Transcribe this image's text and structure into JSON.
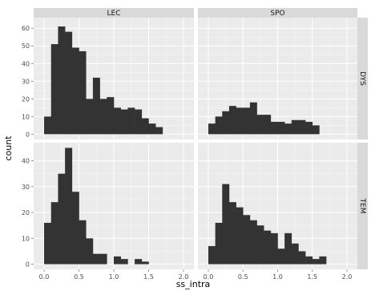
{
  "chart_data": {
    "type": "bar",
    "subtype": "faceted-histogram",
    "xlabel": "ss_intra",
    "ylabel": "count",
    "xlim": [
      -0.15,
      2.15
    ],
    "x_ticks": [
      0.0,
      0.5,
      1.0,
      1.5,
      2.0
    ],
    "x_tick_labels": [
      "0.0",
      "0.5",
      "1.0",
      "1.5",
      "2.0"
    ],
    "bin_width": 0.1,
    "bin_starts": [
      0.0,
      0.1,
      0.2,
      0.3,
      0.4,
      0.5,
      0.6,
      0.7,
      0.8,
      0.9,
      1.0,
      1.1,
      1.2,
      1.3,
      1.4,
      1.5,
      1.6,
      1.7,
      1.8,
      1.9
    ],
    "column_facets": [
      "LEC",
      "SPO"
    ],
    "row_facets": [
      "DYS",
      "TEM"
    ],
    "grid": true,
    "colors": {
      "bar": "#333333",
      "panel": "#ebebeb",
      "gridline": "#ffffff",
      "strip": "#d9d9d9"
    },
    "panels": [
      {
        "col": "LEC",
        "row": "DYS",
        "ylim": [
          -3,
          66
        ],
        "y_ticks": [
          0,
          10,
          20,
          30,
          40,
          50,
          60
        ],
        "y_tick_labels": [
          "0",
          "10",
          "20",
          "30",
          "40",
          "50",
          "60"
        ],
        "counts": [
          10,
          51,
          61,
          58,
          49,
          47,
          20,
          32,
          20,
          21,
          15,
          14,
          15,
          14,
          9,
          6,
          4,
          0,
          0,
          0
        ]
      },
      {
        "col": "SPO",
        "row": "DYS",
        "ylim": [
          -3,
          66
        ],
        "y_ticks": [
          0,
          10,
          20,
          30,
          40,
          50,
          60
        ],
        "y_tick_labels": [
          "0",
          "10",
          "20",
          "30",
          "40",
          "50",
          "60"
        ],
        "counts": [
          6,
          10,
          13,
          16,
          15,
          15,
          18,
          11,
          11,
          7,
          7,
          6,
          8,
          8,
          7,
          5,
          0,
          0,
          0,
          0
        ]
      },
      {
        "col": "LEC",
        "row": "TEM",
        "ylim": [
          -2,
          47
        ],
        "y_ticks": [
          0,
          10,
          20,
          30,
          40
        ],
        "y_tick_labels": [
          "0",
          "10",
          "20",
          "30",
          "40"
        ],
        "counts": [
          16,
          24,
          35,
          45,
          28,
          17,
          10,
          4,
          4,
          0,
          3,
          2,
          0,
          2,
          1,
          0,
          0,
          0,
          0,
          0
        ]
      },
      {
        "col": "SPO",
        "row": "TEM",
        "ylim": [
          -2,
          47
        ],
        "y_ticks": [
          0,
          10,
          20,
          30,
          40
        ],
        "y_tick_labels": [
          "0",
          "10",
          "20",
          "30",
          "40"
        ],
        "counts": [
          7,
          16,
          31,
          24,
          22,
          19,
          17,
          15,
          13,
          12,
          6,
          12,
          8,
          5,
          3,
          2,
          3,
          0,
          0,
          0
        ]
      }
    ]
  }
}
